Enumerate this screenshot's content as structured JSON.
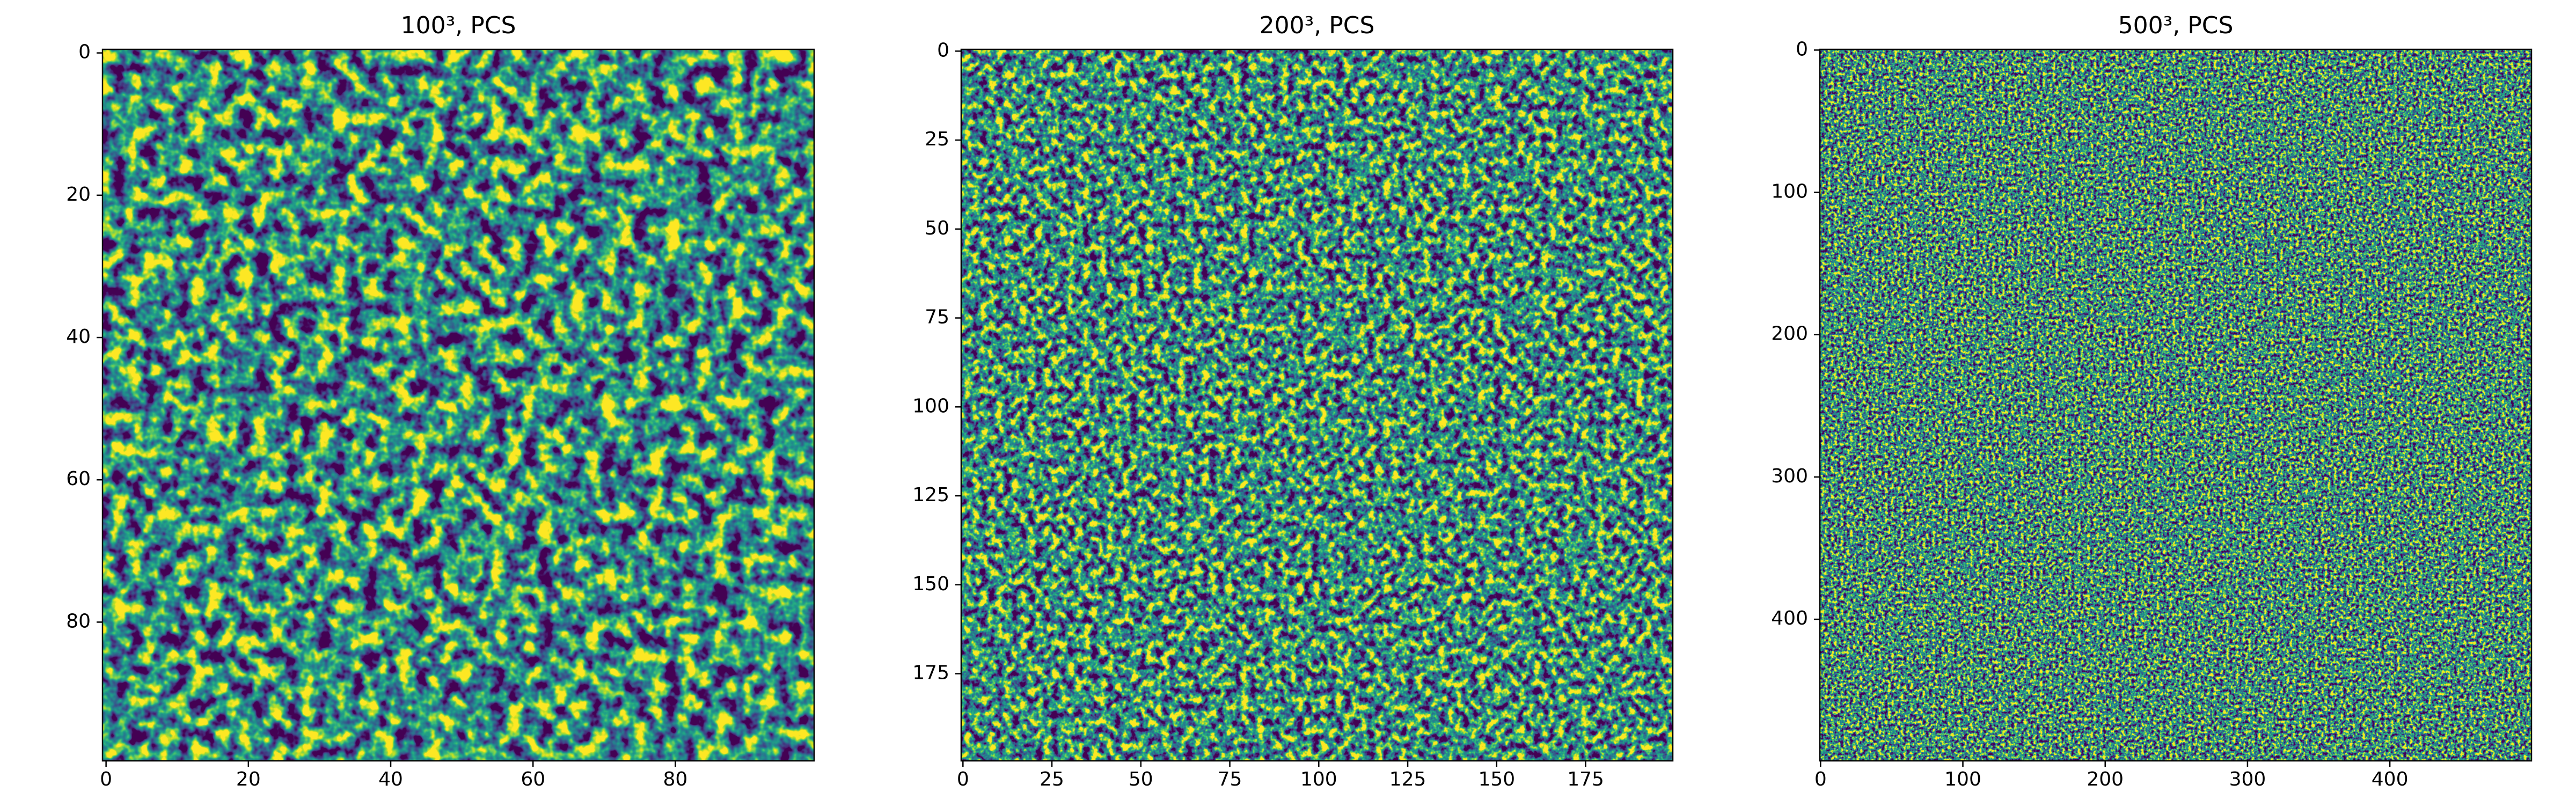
{
  "chart_data": [
    {
      "type": "heatmap",
      "title": "100³, PCS",
      "cmap": "viridis",
      "xlim": [
        -0.5,
        99.5
      ],
      "ylim": [
        99.5,
        -0.5
      ],
      "xticks": [
        0,
        20,
        40,
        60,
        80
      ],
      "yticks": [
        0,
        20,
        40,
        60,
        80
      ]
    },
    {
      "type": "heatmap",
      "title": "200³, PCS",
      "cmap": "viridis",
      "xlim": [
        -0.5,
        199.5
      ],
      "ylim": [
        199.5,
        -0.5
      ],
      "xticks": [
        0,
        25,
        50,
        75,
        100,
        125,
        150,
        175
      ],
      "yticks": [
        0,
        25,
        50,
        75,
        100,
        125,
        150,
        175
      ]
    },
    {
      "type": "heatmap",
      "title": "500³, PCS",
      "cmap": "viridis",
      "xlim": [
        -0.5,
        499.5
      ],
      "ylim": [
        499.5,
        -0.5
      ],
      "xticks": [
        0,
        100,
        200,
        300,
        400
      ],
      "yticks": [
        0,
        100,
        200,
        300,
        400
      ]
    }
  ]
}
